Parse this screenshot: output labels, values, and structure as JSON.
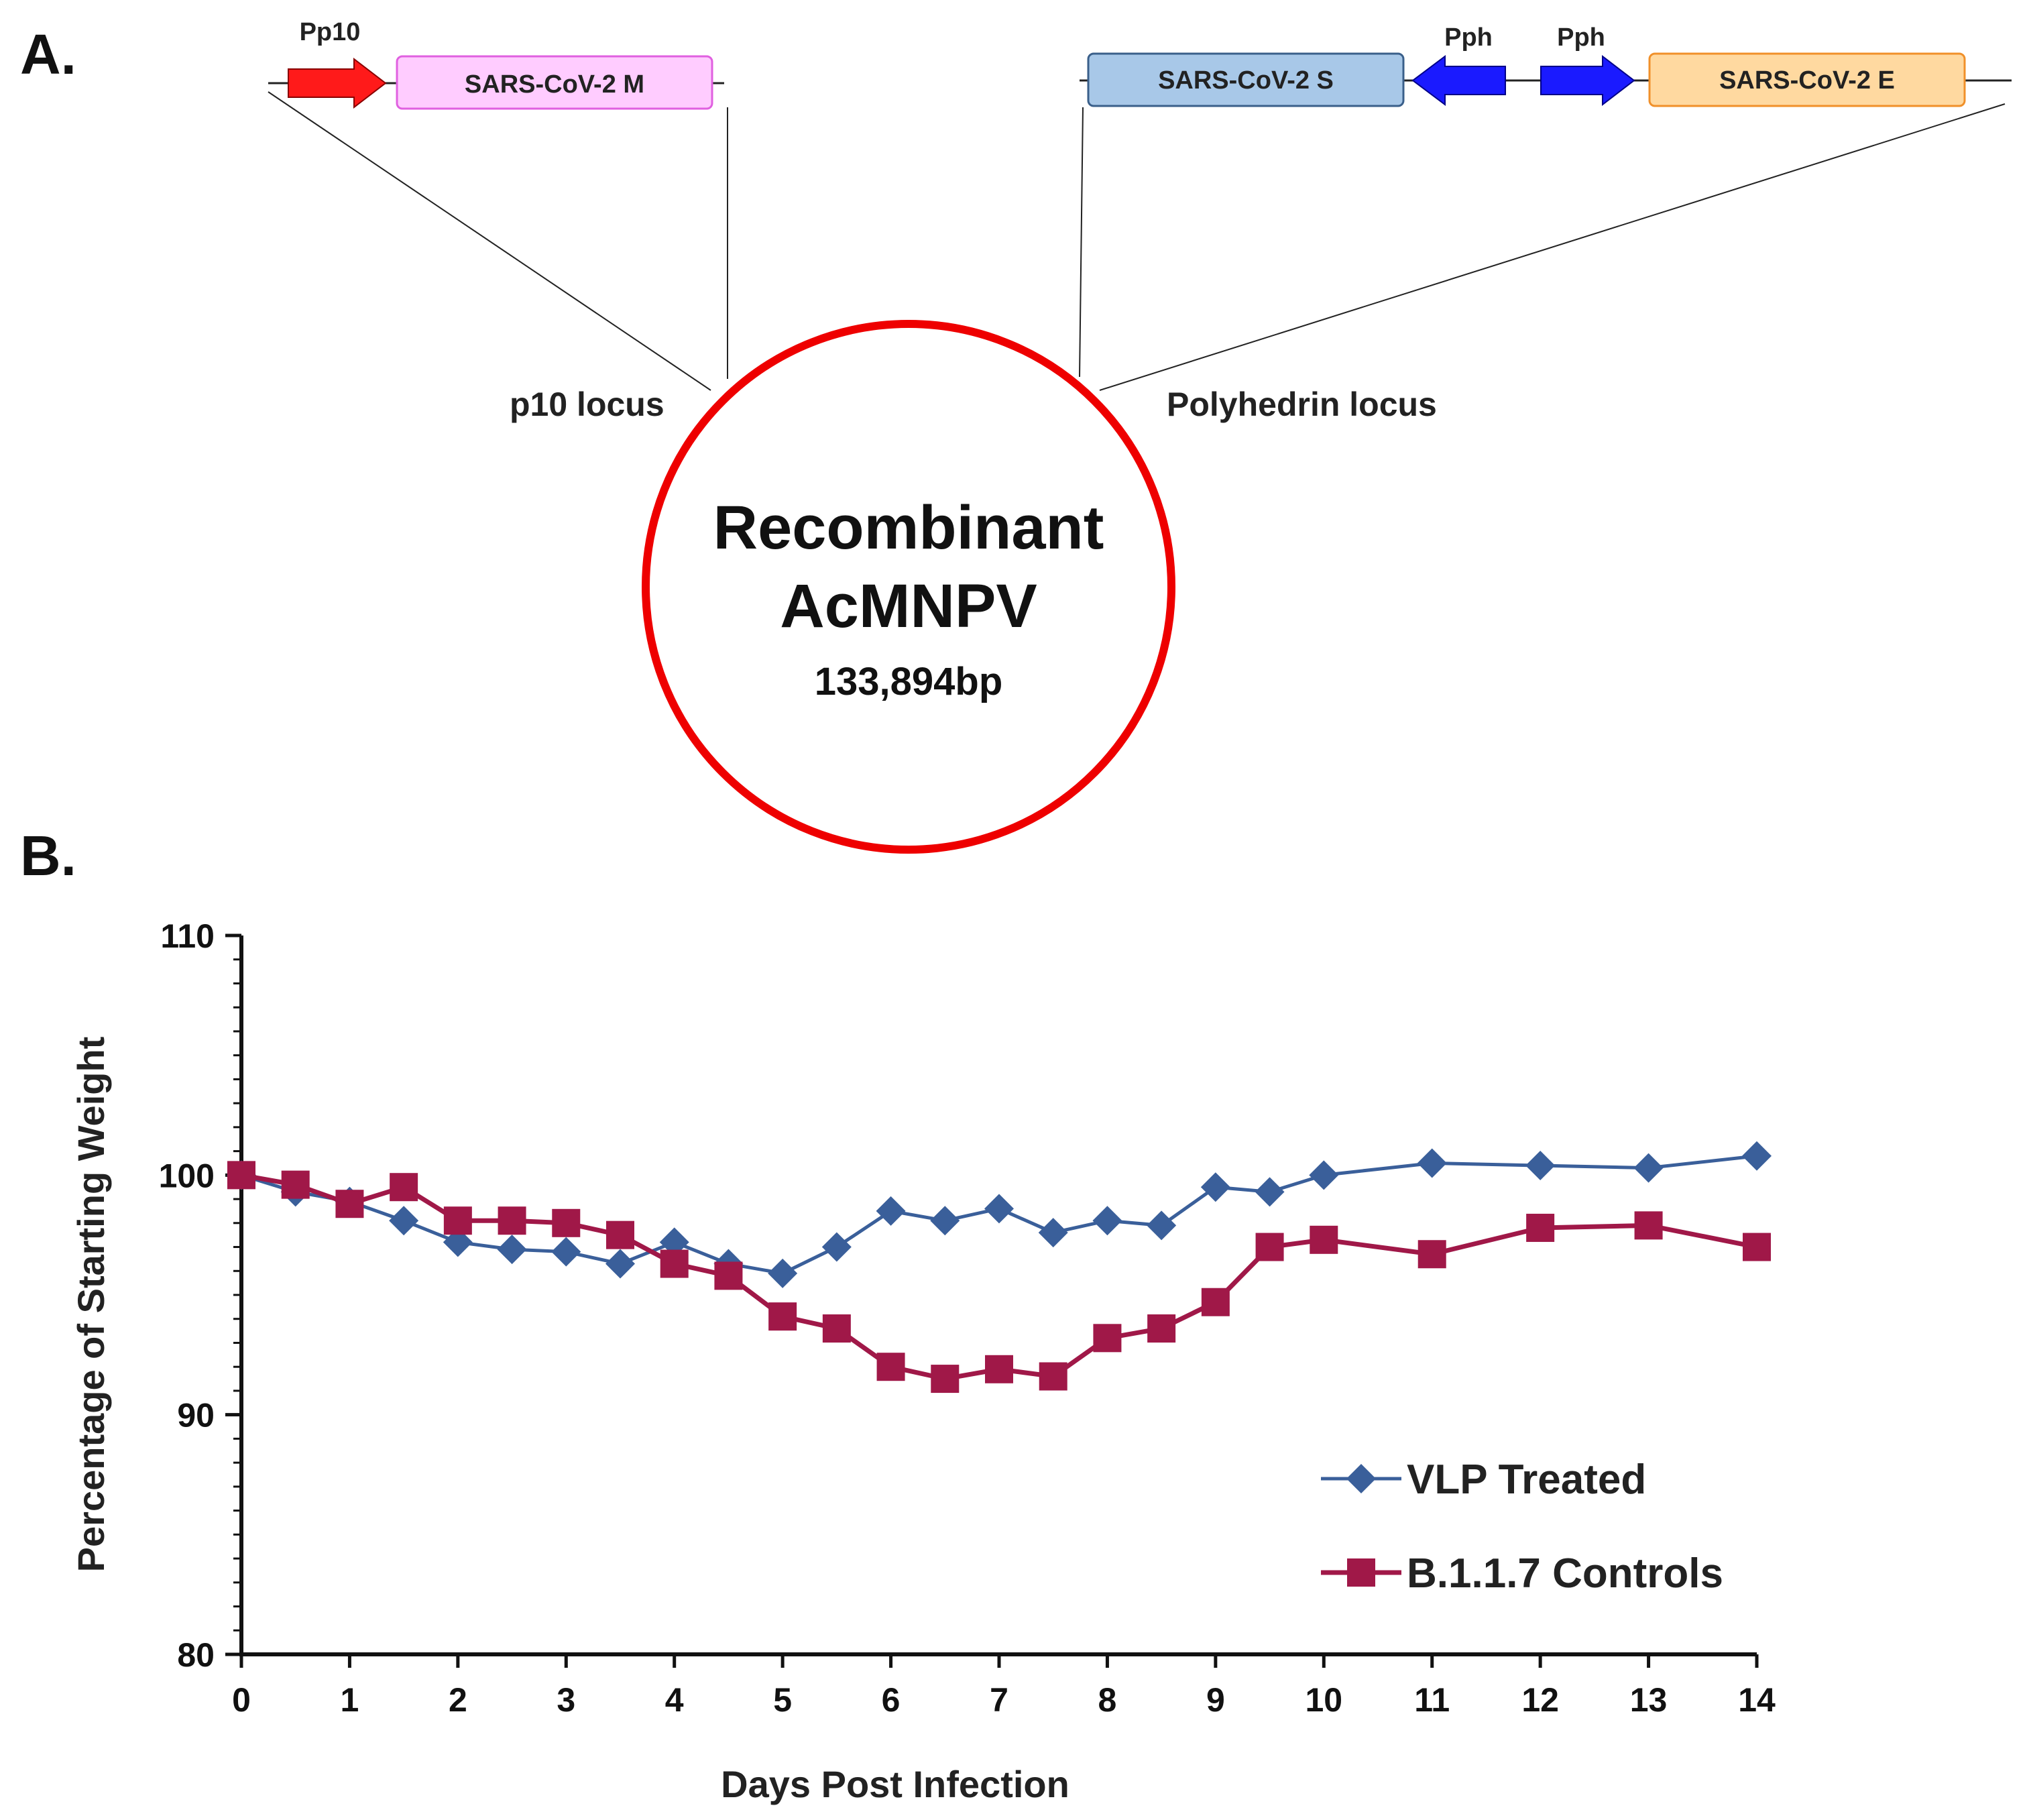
{
  "panel_a": {
    "letter": "A.",
    "left_construct": {
      "promoter": "Pp10",
      "gene": "SARS-CoV-2 M"
    },
    "right_construct": {
      "gene_s": "SARS-CoV-2 S",
      "promoter_1": "Pph",
      "promoter_2": "Pph",
      "gene_e": "SARS-CoV-2 E"
    },
    "left_locus": "p10 locus",
    "right_locus": "Polyhedrin locus",
    "genome_title_line1": "Recombinant",
    "genome_title_line2": "AcMNPV",
    "genome_size": "133,894bp",
    "colors": {
      "promoter_p10": "#ff1a1a",
      "promoter_ph": "#1a1aff",
      "gene_m": "#ffccff",
      "gene_m_border": "#e060e0",
      "gene_s": "#a8c8e8",
      "gene_s_border": "#3a5f8a",
      "gene_e": "#ffd9a0",
      "gene_e_border": "#f0902a",
      "genome_circle": "#ee0000"
    }
  },
  "panel_b": {
    "letter": "B."
  },
  "chart_data": {
    "type": "line",
    "xlabel": "Days Post Infection",
    "ylabel": "Percentage of Starting Weight",
    "xlim": [
      0,
      14
    ],
    "ylim": [
      80,
      110
    ],
    "x_ticks": [
      0,
      1,
      2,
      3,
      4,
      5,
      6,
      7,
      8,
      9,
      10,
      11,
      12,
      13,
      14
    ],
    "y_ticks": [
      80,
      90,
      100,
      110
    ],
    "grid": false,
    "legend_position": "bottom-right",
    "series": [
      {
        "name": "VLP Treated",
        "marker": "diamond",
        "color": "#3a5f9a",
        "x": [
          0,
          0.5,
          1,
          1.5,
          2,
          2.5,
          3,
          3.5,
          4,
          4.5,
          5,
          5.5,
          6,
          6.5,
          7,
          7.5,
          8,
          8.5,
          9,
          9.5,
          10,
          11,
          12,
          13,
          14
        ],
        "y": [
          100.0,
          99.3,
          98.9,
          98.1,
          97.2,
          96.9,
          96.8,
          96.3,
          97.2,
          96.3,
          95.9,
          97.0,
          98.5,
          98.1,
          98.6,
          97.6,
          98.1,
          97.9,
          99.5,
          99.3,
          100.0,
          100.5,
          100.4,
          100.3,
          100.8
        ]
      },
      {
        "name": "B.1.1.7 Controls",
        "marker": "square",
        "color": "#a01848",
        "x": [
          0,
          0.5,
          1,
          1.5,
          2,
          2.5,
          3,
          3.5,
          4,
          4.5,
          5,
          5.5,
          6,
          6.5,
          7,
          7.5,
          8,
          8.5,
          9,
          9.5,
          10,
          11,
          12,
          13,
          14
        ],
        "y": [
          100.0,
          99.6,
          98.8,
          99.5,
          98.1,
          98.1,
          98.0,
          97.5,
          96.3,
          95.8,
          94.1,
          93.6,
          92.0,
          91.5,
          91.9,
          91.6,
          93.2,
          93.6,
          94.7,
          97.0,
          97.3,
          96.7,
          97.8,
          97.9,
          97.0
        ]
      }
    ]
  }
}
